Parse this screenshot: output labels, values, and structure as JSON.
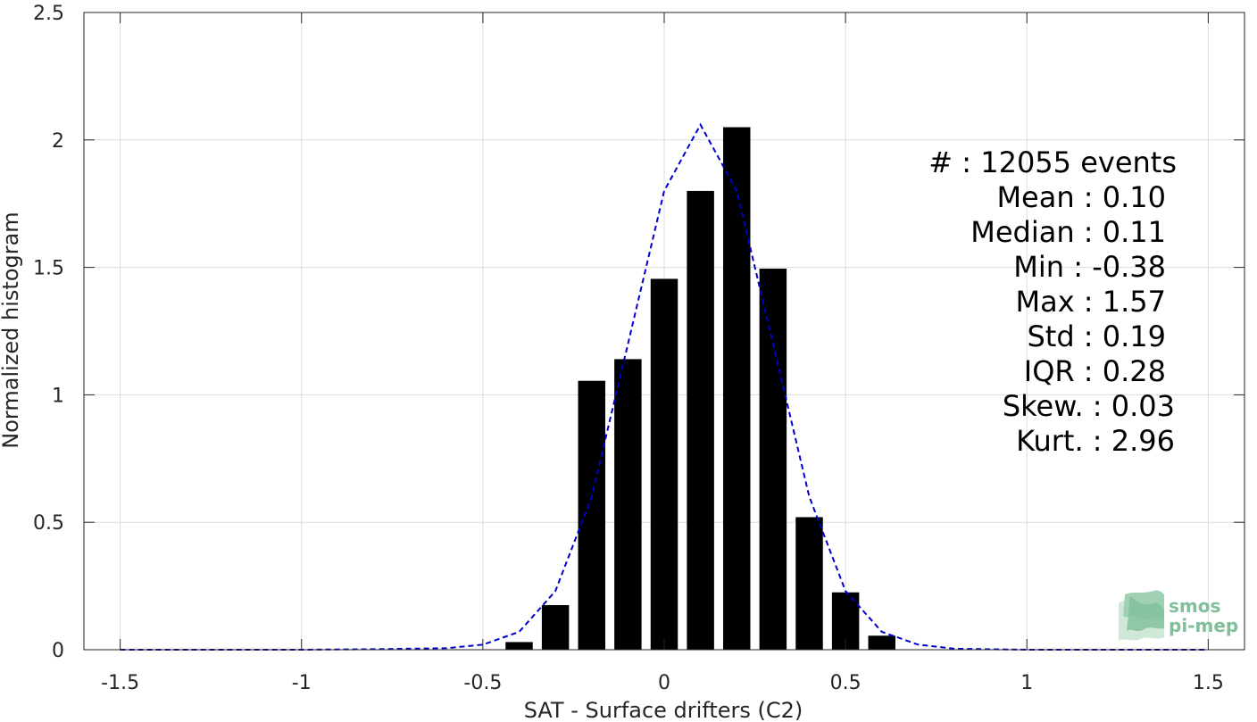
{
  "chart_data": {
    "type": "bar",
    "xlabel": "SAT - Surface drifters (C2)",
    "ylabel": "Normalized histogram",
    "xlim": [
      -1.6,
      1.6
    ],
    "ylim": [
      0,
      2.5
    ],
    "xticks": [
      -1.5,
      -1,
      -0.5,
      0,
      0.5,
      1,
      1.5
    ],
    "xtick_labels": [
      "-1.5",
      "-1",
      "-0.5",
      "0",
      "0.5",
      "1",
      "1.5"
    ],
    "yticks": [
      0,
      0.5,
      1,
      1.5,
      2,
      2.5
    ],
    "ytick_labels": [
      "0",
      "0.5",
      "1",
      "1.5",
      "2",
      "2.5"
    ],
    "grid": true,
    "bar_width": 0.075,
    "bar_color": "#000000",
    "bars": [
      {
        "x": -0.4,
        "y": 0.03
      },
      {
        "x": -0.3,
        "y": 0.175
      },
      {
        "x": -0.2,
        "y": 1.055
      },
      {
        "x": -0.1,
        "y": 1.14
      },
      {
        "x": 0.0,
        "y": 1.455
      },
      {
        "x": 0.1,
        "y": 1.8
      },
      {
        "x": 0.2,
        "y": 2.05
      },
      {
        "x": 0.3,
        "y": 1.495
      },
      {
        "x": 0.4,
        "y": 0.52
      },
      {
        "x": 0.5,
        "y": 0.225
      },
      {
        "x": 0.6,
        "y": 0.055
      }
    ],
    "fit_line": {
      "style": "dashed",
      "color": "#0000cc",
      "x": [
        -1.5,
        -1.0,
        -0.8,
        -0.6,
        -0.5,
        -0.4,
        -0.3,
        -0.2,
        -0.1,
        0.0,
        0.1,
        0.2,
        0.3,
        0.4,
        0.5,
        0.6,
        0.7,
        0.8,
        1.0,
        1.5
      ],
      "y": [
        0,
        0,
        0.002,
        0.006,
        0.02,
        0.07,
        0.23,
        0.6,
        1.2,
        1.8,
        2.06,
        1.8,
        1.2,
        0.6,
        0.23,
        0.07,
        0.02,
        0.004,
        0,
        0
      ]
    },
    "stats": [
      {
        "label": "#  : 12055 events"
      },
      {
        "label": "Mean : 0.10"
      },
      {
        "label": "Median : 0.11"
      },
      {
        "label": "Min : -0.38"
      },
      {
        "label": "Max : 1.57"
      },
      {
        "label": "Std : 0.19"
      },
      {
        "label": "IQR : 0.28"
      },
      {
        "label": "Skew. : 0.03"
      },
      {
        "label": "Kurt. : 2.96"
      }
    ]
  },
  "logo": {
    "line1": "smos",
    "line2": "pi-mep",
    "color": "#7fbf9a"
  }
}
